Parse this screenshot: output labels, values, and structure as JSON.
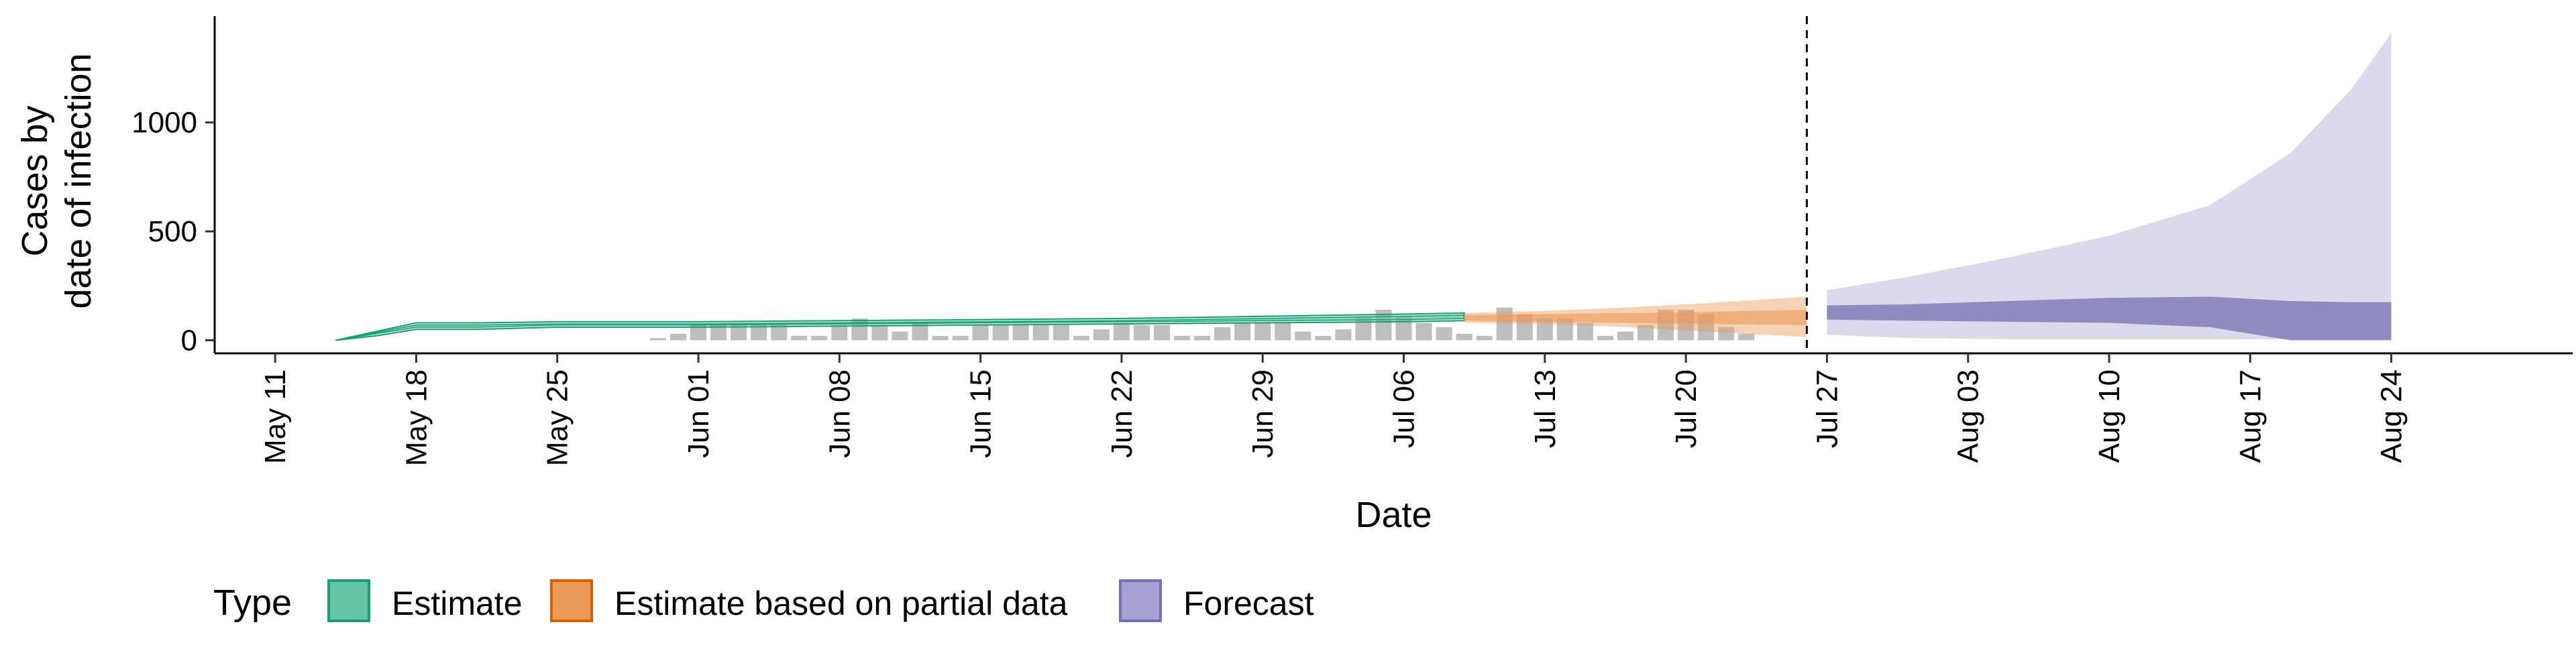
{
  "chart_data": {
    "type": "area",
    "xlabel": "Date",
    "ylabel_lines": [
      "Cases by",
      "date of infection"
    ],
    "y_ticks": [
      0,
      500,
      1000
    ],
    "ylim": [
      -60,
      1470
    ],
    "x_tick_labels": [
      {
        "date": "2020-05-11",
        "label": "May 11"
      },
      {
        "date": "2020-05-18",
        "label": "May 18"
      },
      {
        "date": "2020-05-25",
        "label": "May 25"
      },
      {
        "date": "2020-06-01",
        "label": "Jun 01"
      },
      {
        "date": "2020-06-08",
        "label": "Jun 08"
      },
      {
        "date": "2020-06-15",
        "label": "Jun 15"
      },
      {
        "date": "2020-06-22",
        "label": "Jun 22"
      },
      {
        "date": "2020-06-29",
        "label": "Jun 29"
      },
      {
        "date": "2020-07-06",
        "label": "Jul 06"
      },
      {
        "date": "2020-07-13",
        "label": "Jul 13"
      },
      {
        "date": "2020-07-20",
        "label": "Jul 20"
      },
      {
        "date": "2020-07-27",
        "label": "Jul 27"
      },
      {
        "date": "2020-08-03",
        "label": "Aug 03"
      },
      {
        "date": "2020-08-10",
        "label": "Aug 10"
      },
      {
        "date": "2020-08-17",
        "label": "Aug 17"
      },
      {
        "date": "2020-08-24",
        "label": "Aug 24"
      }
    ],
    "xlim": [
      "2020-05-08",
      "2020-09-02"
    ],
    "forecast_start_line": "2020-07-26",
    "grid": false,
    "legend": {
      "title": "Type",
      "position": "bottom-left",
      "entries": [
        {
          "label": "Estimate",
          "fill": "#66c2a5",
          "stroke": "#1b9e77"
        },
        {
          "label": "Estimate based on partial data",
          "fill": "#ec9a59",
          "stroke": "#d95f02"
        },
        {
          "label": "Forecast",
          "fill": "#a6a1d0",
          "stroke": "#7570b3"
        }
      ]
    },
    "colors": {
      "observed_bar": "#b3b3b3",
      "estimate_band": "#66c2a5",
      "estimate_line": "#1b9e77",
      "partial_band": "#ec9a59",
      "partial_line": "#d95f02",
      "forecast_band": "#a6a1d0",
      "forecast_line": "#7570b3"
    },
    "observed_cases": {
      "start_date": "2020-05-30",
      "values": [
        10,
        30,
        70,
        70,
        70,
        70,
        70,
        20,
        20,
        70,
        100,
        70,
        40,
        80,
        20,
        20,
        70,
        70,
        70,
        70,
        70,
        20,
        50,
        80,
        70,
        70,
        20,
        20,
        60,
        80,
        80,
        80,
        40,
        20,
        50,
        110,
        140,
        110,
        80,
        60,
        30,
        20,
        150,
        120,
        100,
        100,
        80,
        20,
        40,
        70,
        140,
        140,
        120,
        60,
        30
      ]
    },
    "series": [
      {
        "name": "Estimate",
        "dates": [
          "2020-05-14",
          "2020-05-16",
          "2020-05-18",
          "2020-05-21",
          "2020-05-25",
          "2020-05-28",
          "2020-06-01",
          "2020-06-08",
          "2020-06-15",
          "2020-06-22",
          "2020-06-29",
          "2020-07-06",
          "2020-07-09"
        ],
        "outer_low": [
          0,
          20,
          50,
          50,
          60,
          60,
          60,
          65,
          70,
          75,
          80,
          85,
          90
        ],
        "outer_high": [
          0,
          40,
          80,
          80,
          85,
          85,
          85,
          90,
          95,
          100,
          110,
          120,
          125
        ],
        "inner_low": [
          0,
          30,
          60,
          60,
          70,
          70,
          70,
          75,
          80,
          85,
          90,
          95,
          100
        ],
        "inner_high": [
          0,
          35,
          70,
          70,
          75,
          75,
          75,
          80,
          85,
          90,
          100,
          110,
          115
        ]
      },
      {
        "name": "Estimate based on partial data",
        "dates": [
          "2020-07-09",
          "2020-07-13",
          "2020-07-17",
          "2020-07-21",
          "2020-07-26"
        ],
        "outer_low": [
          80,
          75,
          60,
          40,
          15
        ],
        "outer_high": [
          125,
          135,
          150,
          170,
          200
        ],
        "inner_low": [
          90,
          85,
          80,
          75,
          70
        ],
        "inner_high": [
          115,
          120,
          125,
          130,
          140
        ]
      },
      {
        "name": "Forecast",
        "dates": [
          "2020-07-27",
          "2020-07-31",
          "2020-08-05",
          "2020-08-10",
          "2020-08-15",
          "2020-08-19",
          "2020-08-22",
          "2020-08-24"
        ],
        "outer_low": [
          25,
          10,
          5,
          5,
          5,
          5,
          5,
          5
        ],
        "outer_high": [
          230,
          290,
          380,
          480,
          620,
          860,
          1150,
          1410
        ],
        "inner_low": [
          95,
          90,
          85,
          80,
          60,
          0,
          0,
          0
        ],
        "inner_high": [
          160,
          165,
          180,
          195,
          200,
          180,
          175,
          175
        ]
      }
    ]
  }
}
